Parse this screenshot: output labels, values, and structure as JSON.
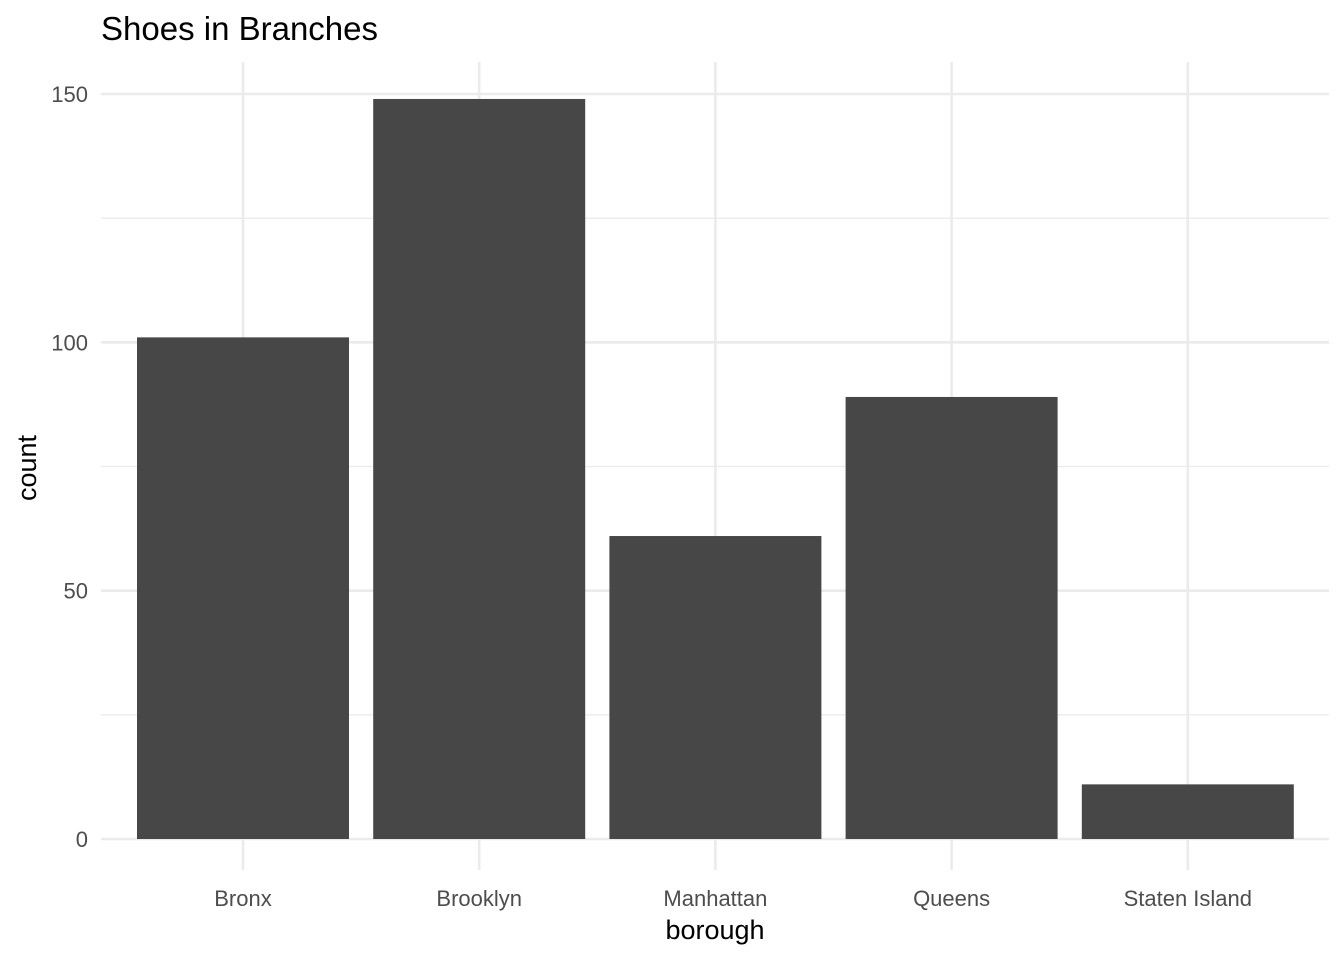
{
  "chart_data": {
    "type": "bar",
    "title": "Shoes in Branches",
    "xlabel": "borough",
    "ylabel": "count",
    "categories": [
      "Bronx",
      "Brooklyn",
      "Manhattan",
      "Queens",
      "Staten Island"
    ],
    "values": [
      101,
      149,
      61,
      89,
      11
    ],
    "ylim": [
      0,
      156
    ],
    "yticks": [
      "0",
      "50",
      "100",
      "150"
    ],
    "grid": true,
    "bar_color": "#474747",
    "grid_color": "#ebebeb"
  }
}
